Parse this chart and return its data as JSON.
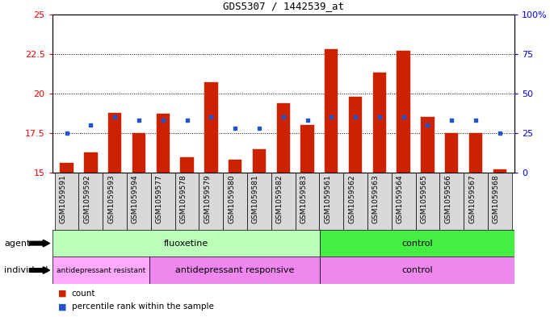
{
  "title": "GDS5307 / 1442539_at",
  "samples": [
    "GSM1059591",
    "GSM1059592",
    "GSM1059593",
    "GSM1059594",
    "GSM1059577",
    "GSM1059578",
    "GSM1059579",
    "GSM1059580",
    "GSM1059581",
    "GSM1059582",
    "GSM1059583",
    "GSM1059561",
    "GSM1059562",
    "GSM1059563",
    "GSM1059564",
    "GSM1059565",
    "GSM1059566",
    "GSM1059567",
    "GSM1059568"
  ],
  "count_values": [
    15.6,
    16.3,
    18.8,
    17.5,
    18.7,
    16.0,
    20.7,
    15.8,
    16.5,
    19.4,
    18.0,
    22.8,
    19.8,
    21.3,
    22.7,
    18.5,
    17.5,
    17.5,
    15.2
  ],
  "percentile_left": [
    17.5,
    18.0,
    18.5,
    18.3,
    18.3,
    18.3,
    18.5,
    17.8,
    17.8,
    18.5,
    18.3,
    18.5,
    18.5,
    18.5,
    18.5,
    18.0,
    18.3,
    18.3,
    17.5
  ],
  "ylim_left": [
    15,
    25
  ],
  "ylim_right": [
    0,
    100
  ],
  "yticks_left": [
    15,
    17.5,
    20,
    22.5,
    25
  ],
  "yticks_right": [
    0,
    25,
    50,
    75,
    100
  ],
  "ytick_labels_left": [
    "15",
    "17.5",
    "20",
    "22.5",
    "25"
  ],
  "ytick_labels_right": [
    "0",
    "25",
    "50",
    "75",
    "100%"
  ],
  "hlines": [
    17.5,
    20.0,
    22.5
  ],
  "bar_color": "#cc2200",
  "percentile_color": "#2255cc",
  "agent_groups": [
    {
      "label": "fluoxetine",
      "start": 0,
      "end": 11,
      "color": "#bbffbb"
    },
    {
      "label": "control",
      "start": 11,
      "end": 19,
      "color": "#44ee44"
    }
  ],
  "ind_groups": [
    {
      "label": "antidepressant resistant",
      "start": 0,
      "end": 4,
      "color": "#ffaaff",
      "fontsize": 6.5
    },
    {
      "label": "antidepressant responsive",
      "start": 4,
      "end": 11,
      "color": "#ee88ee",
      "fontsize": 8
    },
    {
      "label": "control",
      "start": 11,
      "end": 19,
      "color": "#ee88ee",
      "fontsize": 8
    }
  ],
  "agent_label": "agent",
  "individual_label": "individual",
  "bar_width": 0.55,
  "xtick_bg": "#d8d8d8"
}
